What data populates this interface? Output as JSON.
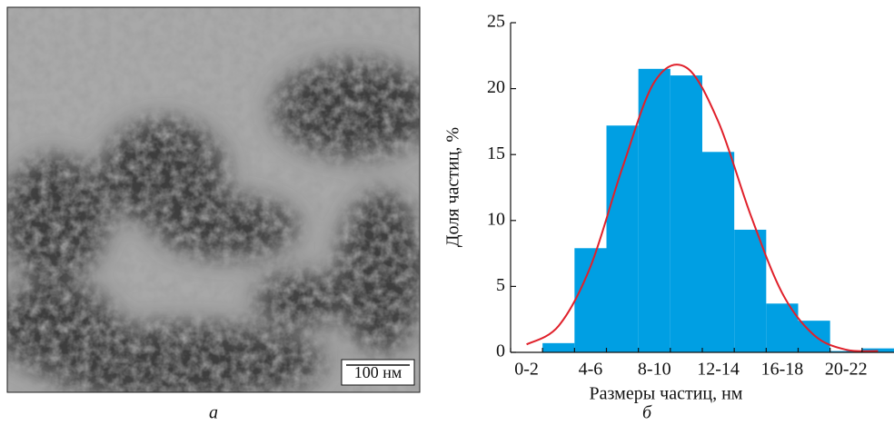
{
  "panel_a": {
    "scale_bar": "100 нм",
    "caption": "а"
  },
  "chart_data": {
    "type": "bar",
    "caption": "б",
    "xlabel": "Размеры частиц, нм",
    "ylabel": "Доля частиц, %",
    "categories": [
      "0-2",
      null,
      "4-6",
      null,
      "8-10",
      null,
      "12-14",
      null,
      "16-18",
      null,
      "20-22",
      null
    ],
    "series": [
      {
        "type": "bar",
        "color": "#009fe3",
        "values": [
          0,
          0.7,
          7.9,
          17.2,
          21.5,
          21.0,
          15.2,
          9.3,
          3.7,
          2.4,
          0.1,
          0.3
        ]
      },
      {
        "type": "line",
        "color": "#e0202a",
        "values": [
          0.6,
          2.0,
          6.5,
          14.0,
          20.5,
          21.6,
          17.5,
          10.5,
          4.5,
          1.3,
          0.2,
          0.1
        ]
      }
    ],
    "ylim": [
      0,
      25
    ],
    "yticks": [
      0,
      5,
      10,
      15,
      20,
      25
    ]
  }
}
